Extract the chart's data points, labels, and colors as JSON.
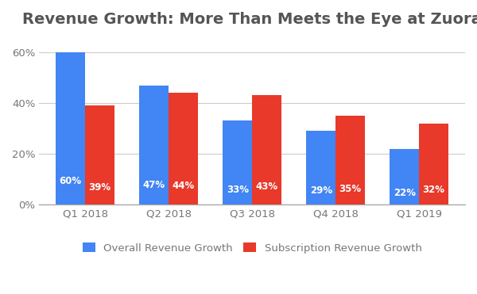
{
  "title": "Revenue Growth: More Than Meets the Eye at Zuora",
  "categories": [
    "Q1 2018",
    "Q2 2018",
    "Q3 2018",
    "Q4 2018",
    "Q1 2019"
  ],
  "overall_revenue": [
    0.6,
    0.47,
    0.33,
    0.29,
    0.22
  ],
  "subscription_revenue": [
    0.39,
    0.44,
    0.43,
    0.35,
    0.32
  ],
  "overall_labels": [
    "60%",
    "47%",
    "33%",
    "29%",
    "22%"
  ],
  "subscription_labels": [
    "39%",
    "44%",
    "43%",
    "35%",
    "32%"
  ],
  "bar_color_overall": "#4285F4",
  "bar_color_subscription": "#E8392A",
  "legend_labels": [
    "Overall Revenue Growth",
    "Subscription Revenue Growth"
  ],
  "ylim": [
    0,
    0.66
  ],
  "yticks": [
    0.0,
    0.2,
    0.4,
    0.6
  ],
  "ytick_labels": [
    "0%",
    "20%",
    "40%",
    "60%"
  ],
  "background_color": "#FFFFFF",
  "grid_color": "#CCCCCC",
  "title_color": "#555555",
  "label_fontsize": 8.5,
  "title_fontsize": 14,
  "bar_width": 0.35
}
